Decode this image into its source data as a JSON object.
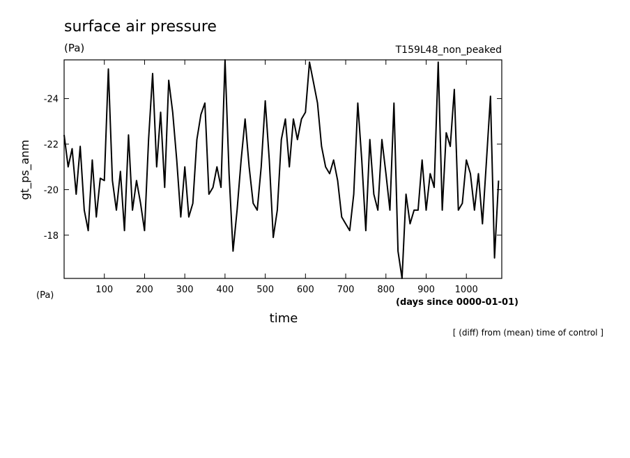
{
  "chart_data": {
    "type": "line",
    "title": "surface air pressure",
    "units": "(Pa)",
    "run_name": "T159L48_non_peaked",
    "y_label": "gt_ps_anm",
    "y_units": "(Pa)",
    "x_label": "time",
    "x_units": "(days since 0000-01-01)",
    "note": "[ (diff) from (mean) time of control ]",
    "color": "#000000",
    "xlim": [
      0,
      1088
    ],
    "ylim": [
      -16.1,
      -25.7
    ],
    "xticks": [
      100,
      200,
      300,
      400,
      500,
      600,
      700,
      800,
      900,
      1000
    ],
    "yticks": [
      -24,
      -22,
      -20,
      -18
    ],
    "x": [
      0,
      10,
      20,
      30,
      40,
      50,
      60,
      70,
      80,
      90,
      100,
      110,
      120,
      130,
      140,
      150,
      160,
      170,
      180,
      190,
      200,
      210,
      220,
      230,
      240,
      250,
      260,
      270,
      280,
      290,
      300,
      310,
      320,
      330,
      340,
      350,
      360,
      370,
      380,
      390,
      400,
      410,
      420,
      430,
      440,
      450,
      460,
      470,
      480,
      490,
      500,
      510,
      520,
      530,
      540,
      550,
      560,
      570,
      580,
      590,
      600,
      610,
      620,
      630,
      640,
      650,
      660,
      670,
      680,
      690,
      700,
      710,
      720,
      730,
      740,
      750,
      760,
      770,
      780,
      790,
      800,
      810,
      820,
      830,
      840,
      850,
      860,
      870,
      880,
      890,
      900,
      910,
      920,
      930,
      940,
      950,
      960,
      970,
      980,
      990,
      1000,
      1010,
      1020,
      1030,
      1040,
      1050,
      1060,
      1070,
      1080
    ],
    "values": [
      -22.4,
      -21.0,
      -21.8,
      -19.8,
      -21.9,
      -19.1,
      -18.2,
      -21.3,
      -18.8,
      -20.5,
      -20.4,
      -25.3,
      -20.4,
      -19.1,
      -20.8,
      -18.2,
      -22.4,
      -19.1,
      -20.4,
      -19.4,
      -18.2,
      -22.2,
      -25.1,
      -21.0,
      -23.4,
      -20.1,
      -24.8,
      -23.4,
      -21.3,
      -18.8,
      -21.0,
      -18.8,
      -19.4,
      -22.2,
      -23.3,
      -23.8,
      -19.8,
      -20.1,
      -21.0,
      -20.1,
      -25.7,
      -20.7,
      -17.3,
      -19.1,
      -21.3,
      -23.1,
      -21.0,
      -19.4,
      -19.1,
      -21.0,
      -23.9,
      -21.3,
      -17.9,
      -19.1,
      -22.2,
      -23.1,
      -21.0,
      -23.1,
      -22.2,
      -23.1,
      -23.4,
      -25.6,
      -24.7,
      -23.8,
      -21.9,
      -21.0,
      -20.7,
      -21.3,
      -20.4,
      -18.8,
      -18.5,
      -18.2,
      -19.8,
      -23.8,
      -21.3,
      -18.2,
      -22.2,
      -19.8,
      -19.1,
      -22.2,
      -20.7,
      -19.1,
      -23.8,
      -17.3,
      -16.1,
      -19.8,
      -18.5,
      -19.1,
      -19.1,
      -21.3,
      -19.1,
      -20.7,
      -20.1,
      -25.6,
      -19.1,
      -22.5,
      -21.9,
      -24.4,
      -19.1,
      -19.4,
      -21.3,
      -20.7,
      -19.1,
      -20.7,
      -18.5,
      -21.3,
      -24.1,
      -17.0,
      -20.4
    ]
  }
}
